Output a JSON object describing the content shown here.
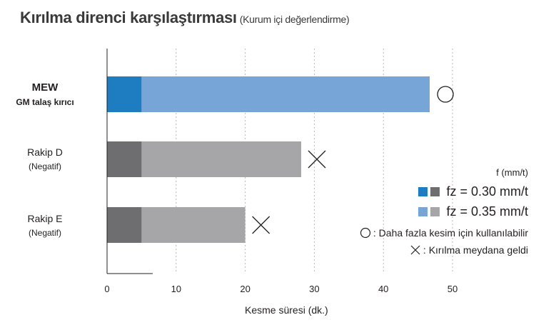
{
  "title": "Kırılma direnci karşılaştırması",
  "subtitle": "(Kurum içi değerlendirme)",
  "chart_data": {
    "type": "bar",
    "orientation": "horizontal",
    "stacked": true,
    "categories": [
      {
        "line1": "MEW",
        "line2": "GM talaş kırıcı",
        "bold": true
      },
      {
        "line1": "Rakip D",
        "line2": "(Negatif)",
        "bold": false
      },
      {
        "line1": "Rakip E",
        "line2": "(Negatif)",
        "bold": false
      }
    ],
    "series": [
      {
        "name": "fz = 0.30 mm/t",
        "values": [
          5,
          5,
          5
        ],
        "colors": [
          "#1e7cc0",
          "#6e6e70",
          "#6e6e70"
        ]
      },
      {
        "name": "fz = 0.35 mm/t",
        "values": [
          41.7,
          23.1,
          15
        ],
        "colors": [
          "#78a5d8",
          "#a6a6a8",
          "#a6a6a8"
        ]
      }
    ],
    "outcomes": [
      "circle",
      "cross",
      "cross"
    ],
    "xlim": [
      0,
      60
    ],
    "xticks": [
      0,
      10,
      20,
      30,
      40,
      50
    ],
    "xlabel": "Kesme süresi (dk.)",
    "grid": "dashed-vertical",
    "legend": {
      "title": "f (mm/t)",
      "placement": "bottom-right",
      "notes": [
        {
          "symbol": "circle",
          "text": ": Daha fazla kesim için kullanılabilir"
        },
        {
          "symbol": "cross",
          "text": ": Kırılma meydana geldi"
        }
      ]
    }
  }
}
